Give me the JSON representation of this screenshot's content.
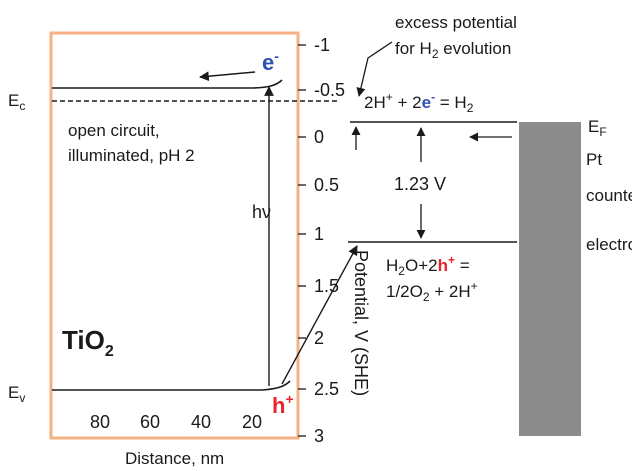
{
  "labels": {
    "ec": "E",
    "ec_sub": "c",
    "ev": "E",
    "ev_sub": "v",
    "electron": "e",
    "electron_sup": "-",
    "hole": "h",
    "hole_sup": "+",
    "hv": "hν",
    "open_circuit_line1": "open circuit,",
    "open_circuit_line2": "illuminated, pH 2",
    "tio2": "TiO",
    "tio2_sub": "2",
    "excess_line1": "excess potential",
    "excess_line2_pre": "for H",
    "excess_line2_sub": "2",
    "excess_line2_post": " evolution",
    "h2_reaction_a": "2H",
    "h2_reaction_a_sup": "+",
    "h2_reaction_b": " + 2",
    "h2_reaction_e": "e",
    "h2_reaction_e_sup": "-",
    "h2_reaction_c": " = H",
    "h2_reaction_c_sub": "2",
    "gap_value": "1.23 V",
    "ox_line1_a": "H",
    "ox_line1_a_sub": "2",
    "ox_line1_b": "O+2",
    "ox_line1_h": "h",
    "ox_line1_h_sup": "+",
    "ox_line1_c": " =",
    "ox_line2_a": "1/2O",
    "ox_line2_a_sub": "2",
    "ox_line2_b": " + 2H",
    "ox_line2_b_sup": "+",
    "ef": "E",
    "ef_sub": "F",
    "pt_line1": "Pt",
    "pt_line2": "counter",
    "pt_line3": "electrode",
    "potential_axis": "Potential, V (SHE)",
    "distance_axis": "Distance, nm"
  },
  "potential_ticks": [
    "-1",
    "-0.5",
    "0",
    "0.5",
    "1",
    "1.5",
    "2",
    "2.5",
    "3"
  ],
  "distance_ticks": [
    "80",
    "60",
    "40",
    "20"
  ],
  "colors": {
    "box_border": "#f5b183",
    "electron": "#2f4fb5",
    "hole": "#e8242c",
    "electrode": "#8c8c8c",
    "ink": "#1a1a1a"
  }
}
